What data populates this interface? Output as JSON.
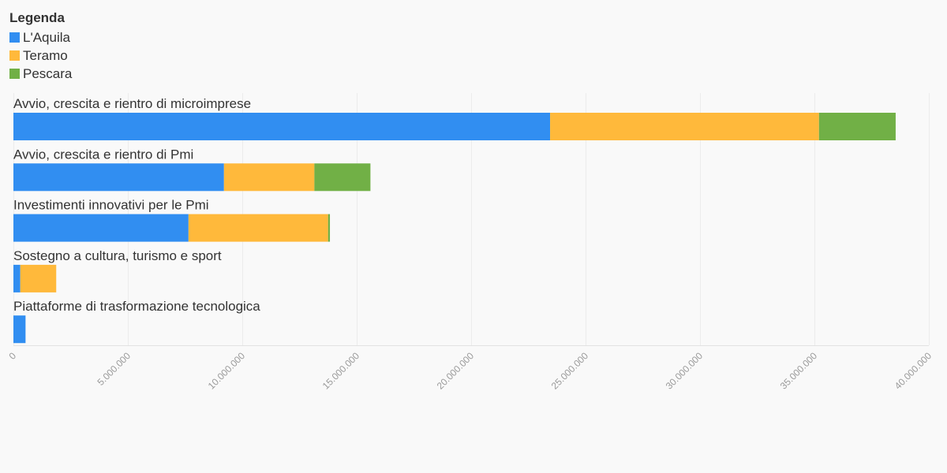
{
  "legend": {
    "title": "Legenda"
  },
  "colors": {
    "series": [
      "#318ef1",
      "#ffb93b",
      "#71b046"
    ]
  },
  "chart_data": {
    "type": "bar",
    "orientation": "horizontal",
    "stacked": true,
    "categories": [
      "Avvio, crescita e rientro di microimprese",
      "Avvio, crescita e rientro di Pmi",
      "Investimenti innovativi per le Pmi",
      "Sostegno a cultura, turismo e sport",
      "Piattaforme di trasformazione tecnologica"
    ],
    "series": [
      {
        "name": "L'Aquila",
        "values": [
          23450000,
          9200000,
          7650000,
          300000,
          530000
        ]
      },
      {
        "name": "Teramo",
        "values": [
          11750000,
          3950000,
          6100000,
          1570000,
          0
        ]
      },
      {
        "name": "Pescara",
        "values": [
          3350000,
          2450000,
          80000,
          0,
          0
        ]
      }
    ],
    "xlim": [
      0,
      40000000
    ],
    "ticks": [
      0,
      5000000,
      10000000,
      15000000,
      20000000,
      25000000,
      30000000,
      35000000,
      40000000
    ],
    "tick_labels": [
      "0",
      "5.000.000",
      "10.000.000",
      "15.000.000",
      "20.000.000",
      "25.000.000",
      "30.000.000",
      "35.000.000",
      "40.000.000"
    ],
    "grid": true,
    "legend_position": "top-left"
  }
}
